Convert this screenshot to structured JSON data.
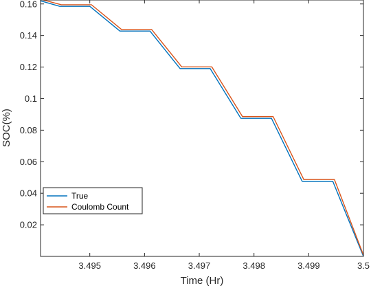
{
  "chart_data": {
    "type": "line",
    "title": "",
    "xlabel": "Time (Hr)",
    "ylabel": "SOC(%)",
    "xlim": [
      3.4941,
      3.5
    ],
    "ylim": [
      0.0,
      0.1625
    ],
    "xticks": [
      3.495,
      3.496,
      3.497,
      3.498,
      3.499,
      3.5
    ],
    "xtick_labels": [
      "3.495",
      "3.496",
      "3.497",
      "3.498",
      "3.499",
      "3.5"
    ],
    "yticks": [
      0.02,
      0.04,
      0.06,
      0.08,
      0.1,
      0.12,
      0.14,
      0.16
    ],
    "ytick_labels": [
      "0.02",
      "0.04",
      "0.06",
      "0.08",
      "0.1",
      "0.12",
      "0.14",
      "0.16"
    ],
    "grid": false,
    "legend_position": "lower-left",
    "series": [
      {
        "name": "True",
        "color": "#0072BD",
        "x": [
          3.4941,
          3.49445,
          3.495,
          3.49555,
          3.4961,
          3.49665,
          3.4972,
          3.49776,
          3.49832,
          3.49888,
          3.49944,
          3.5
        ],
        "y": [
          0.162,
          0.1585,
          0.1585,
          0.1428,
          0.1428,
          0.119,
          0.119,
          0.0875,
          0.0875,
          0.0476,
          0.0476,
          0.0
        ]
      },
      {
        "name": "Coulomb Count",
        "color": "#D95319",
        "x": [
          3.4941,
          3.49448,
          3.49503,
          3.49558,
          3.49613,
          3.49668,
          3.49723,
          3.49779,
          3.49835,
          3.49891,
          3.49947,
          3.5
        ],
        "y": [
          0.163,
          0.1595,
          0.1595,
          0.1438,
          0.1438,
          0.1201,
          0.1201,
          0.0886,
          0.0886,
          0.0487,
          0.0487,
          0.0008
        ]
      }
    ]
  }
}
